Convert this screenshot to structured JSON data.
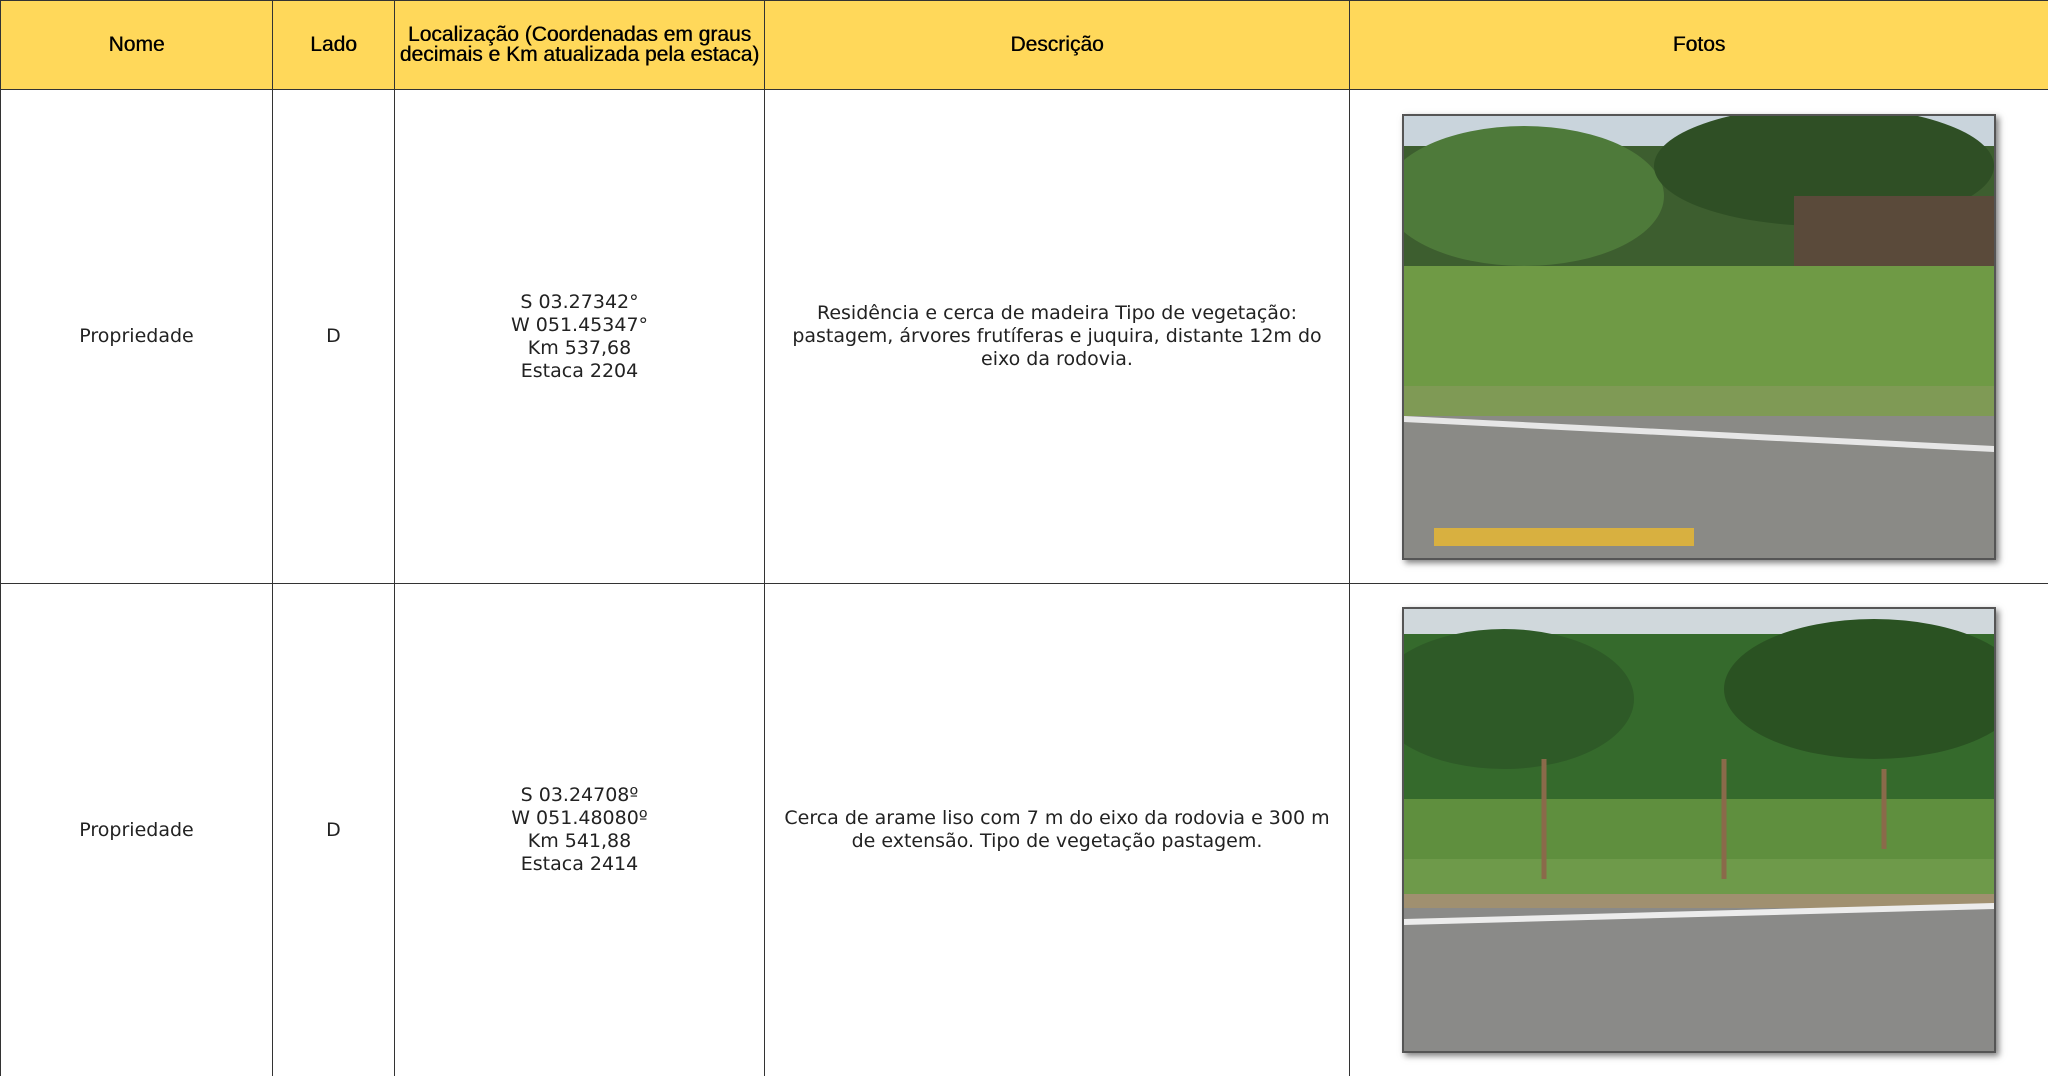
{
  "table": {
    "header": [
      "Nome",
      "Lado",
      "Localização (Coordenadas em graus decimais e Km atualizada pela estaca)",
      "Descrição",
      "Fotos"
    ],
    "rows": [
      {
        "name": "Propriedade",
        "side": "D",
        "location": [
          "S 03.27342°",
          "W 051.45347°",
          "Km 537,68",
          "Estaca 2204"
        ],
        "description": "Residência e cerca de madeira Tipo de vegetação: pastagem, árvores frutíferas e juquira, distante 12m do eixo da rodovia."
      },
      {
        "name": "Propriedade",
        "side": "D",
        "location": [
          "S 03.24708º",
          "W 051.48080º",
          "Km 541,88",
          "Estaca 2414"
        ],
        "description": "Cerca de arame liso com 7 m do eixo da rodovia e 300 m de extensão. Tipo de vegetação pastagem."
      }
    ]
  }
}
